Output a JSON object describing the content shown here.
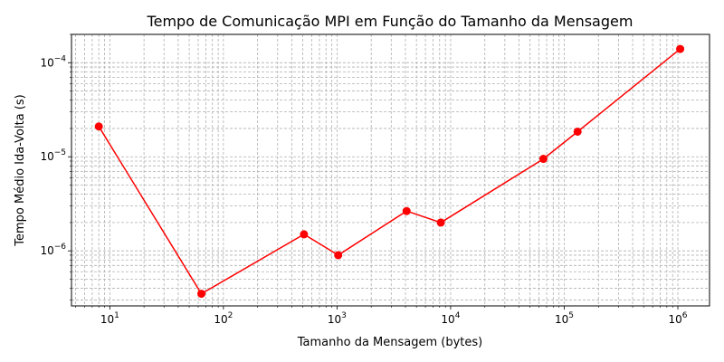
{
  "chart_data": {
    "type": "line",
    "title": "Tempo de Comunicação MPI em Função do Tamanho da Mensagem",
    "xlabel": "Tamanho da Mensagem (bytes)",
    "ylabel": "Tempo Médio Ida-Volta (s)",
    "xscale": "log",
    "yscale": "log",
    "xlim": [
      4.6,
      1900000
    ],
    "ylim": [
      2.6e-07,
      0.0002
    ],
    "grid": true,
    "x_ticks": [
      {
        "base": "10",
        "exp": "1",
        "value": 10
      },
      {
        "base": "10",
        "exp": "2",
        "value": 100
      },
      {
        "base": "10",
        "exp": "3",
        "value": 1000
      },
      {
        "base": "10",
        "exp": "4",
        "value": 10000
      },
      {
        "base": "10",
        "exp": "5",
        "value": 100000
      },
      {
        "base": "10",
        "exp": "6",
        "value": 1000000
      }
    ],
    "y_ticks": [
      {
        "base": "10",
        "exp": "−6",
        "value": 1e-06
      },
      {
        "base": "10",
        "exp": "−5",
        "value": 1e-05
      },
      {
        "base": "10",
        "exp": "−4",
        "value": 0.0001
      }
    ],
    "series": [
      {
        "color": "#ff0000",
        "marker": "circle",
        "x": [
          8,
          64,
          512,
          1024,
          4096,
          8192,
          65536,
          131072,
          1048576
        ],
        "y": [
          2.1e-05,
          3.5e-07,
          1.5e-06,
          9e-07,
          2.65e-06,
          2e-06,
          9.5e-06,
          1.85e-05,
          0.00014
        ]
      }
    ]
  }
}
